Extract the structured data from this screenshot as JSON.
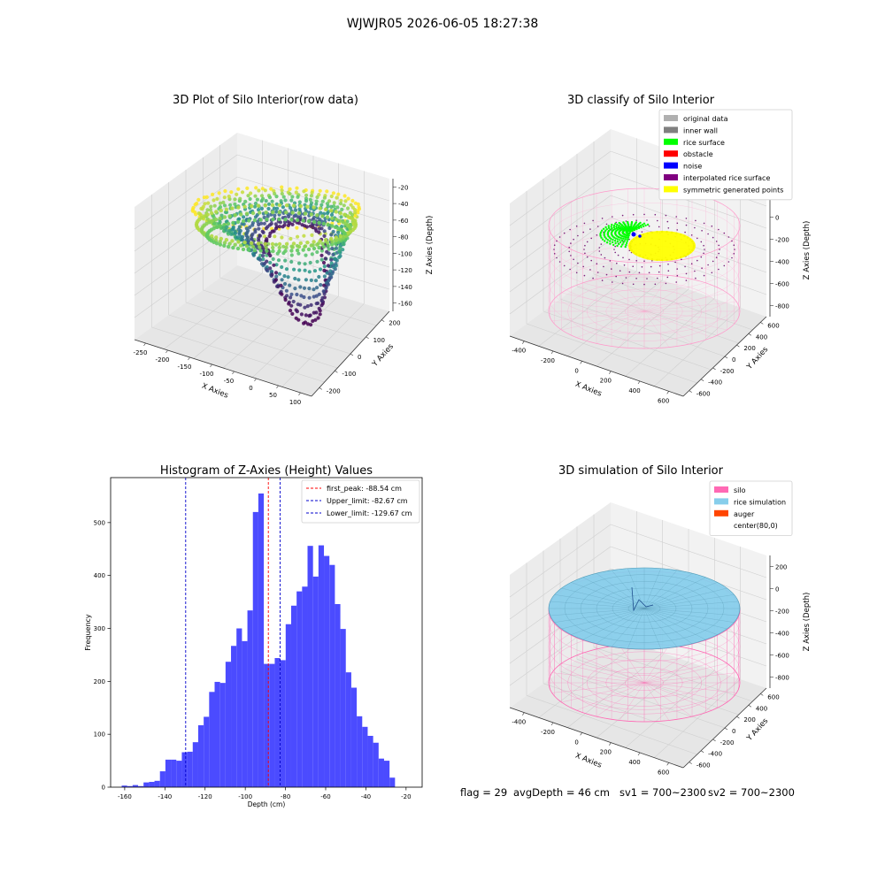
{
  "suptitle": "WJWJR05 2026-06-05 18:27:38",
  "footer": {
    "flag": "flag = 29",
    "avg_depth": "avgDepth = 46 cm",
    "sv1": "sv1 = 700~2300",
    "sv2": "sv2 = 700~2300"
  },
  "colors": {
    "histogram_bar": "#4b4bff",
    "peak_line": "#ff0000",
    "limit_line": "#0000cc",
    "silo": "#ff69b4",
    "rice_simulation": "#87ceeb",
    "auger": "#ff4500"
  },
  "chart_data": [
    {
      "type": "scatter",
      "title": "3D Plot of Silo Interior(row data)",
      "xlabel": "X Axies",
      "ylabel": "Y Axies",
      "zlabel": "Z Axies (Depth)",
      "x_ticks": [
        "-250",
        "-200",
        "-150",
        "-100",
        "-50",
        "0",
        "50",
        "100"
      ],
      "y_ticks": [
        "-200",
        "-100",
        "0",
        "100",
        "200"
      ],
      "z_ticks": [
        "-20",
        "-40",
        "-60",
        "-80",
        "-100",
        "-120",
        "-140",
        "-160"
      ],
      "colormap": "viridis"
    },
    {
      "type": "scatter",
      "title": "3D classify of Silo Interior",
      "xlabel": "X Axies",
      "ylabel": "Y Axies",
      "zlabel": "Z Axies (Depth)",
      "x_ticks": [
        "-400",
        "-200",
        "0",
        "200",
        "400",
        "600"
      ],
      "y_ticks": [
        "-600",
        "-400",
        "-200",
        "0",
        "200",
        "400",
        "600"
      ],
      "z_ticks": [
        "200",
        "0",
        "-200",
        "-400",
        "-600",
        "-800"
      ],
      "legend": [
        {
          "label": "original data",
          "color": "#b0b0b0"
        },
        {
          "label": "inner wall",
          "color": "#808080"
        },
        {
          "label": "rice surface",
          "color": "#00ff00"
        },
        {
          "label": "obstacle",
          "color": "#ff0000"
        },
        {
          "label": "noise",
          "color": "#0000ff"
        },
        {
          "label": "interpolated rice surface",
          "color": "#800080"
        },
        {
          "label": "symmetric generated points",
          "color": "#ffff00"
        }
      ],
      "legend_position": "top-right"
    },
    {
      "type": "bar",
      "title": "Histogram of Z-Axies (Height) Values",
      "xlabel": "Depth (cm)",
      "ylabel": "Frequency",
      "xlim": [
        -167,
        -12
      ],
      "ylim": [
        0,
        585
      ],
      "x_ticks": [
        -160,
        -140,
        -120,
        -100,
        -80,
        -60,
        -40,
        -20
      ],
      "y_ticks": [
        0,
        100,
        200,
        300,
        400,
        500
      ],
      "bin_start": -161.5,
      "bin_width": 2.72,
      "values": [
        3,
        2,
        4,
        2,
        9,
        10,
        12,
        30,
        52,
        52,
        50,
        66,
        67,
        85,
        117,
        133,
        180,
        199,
        197,
        237,
        267,
        300,
        276,
        334,
        520,
        555,
        233,
        233,
        244,
        240,
        308,
        343,
        370,
        379,
        456,
        398,
        457,
        437,
        420,
        346,
        299,
        217,
        188,
        134,
        114,
        97,
        84,
        54,
        50,
        18
      ],
      "lines": [
        {
          "label": "first_peak: -88.54 cm",
          "x": -88.54,
          "style": "peak"
        },
        {
          "label": "Upper_limit: -82.67 cm",
          "x": -82.67,
          "style": "limit"
        },
        {
          "label": "Lower_limit: -129.67 cm",
          "x": -129.67,
          "style": "limit"
        }
      ],
      "legend_position": "top-right"
    },
    {
      "type": "scatter",
      "title": "3D simulation of Silo Interior",
      "xlabel": "X Axies",
      "ylabel": "Y Axies",
      "zlabel": "Z Axies (Depth)",
      "x_ticks": [
        "-400",
        "-200",
        "0",
        "200",
        "400",
        "600"
      ],
      "y_ticks": [
        "-600",
        "-400",
        "-200",
        "0",
        "200",
        "400",
        "600"
      ],
      "z_ticks": [
        "200",
        "0",
        "-200",
        "-400",
        "-600",
        "-800"
      ],
      "legend": [
        {
          "label": "silo",
          "color": "#ff69b4"
        },
        {
          "label": "rice simulation",
          "color": "#87ceeb"
        },
        {
          "label": "auger",
          "color": "#ff4500"
        },
        {
          "label": "center(80,0)",
          "color": ""
        }
      ],
      "legend_position": "top-right"
    }
  ]
}
